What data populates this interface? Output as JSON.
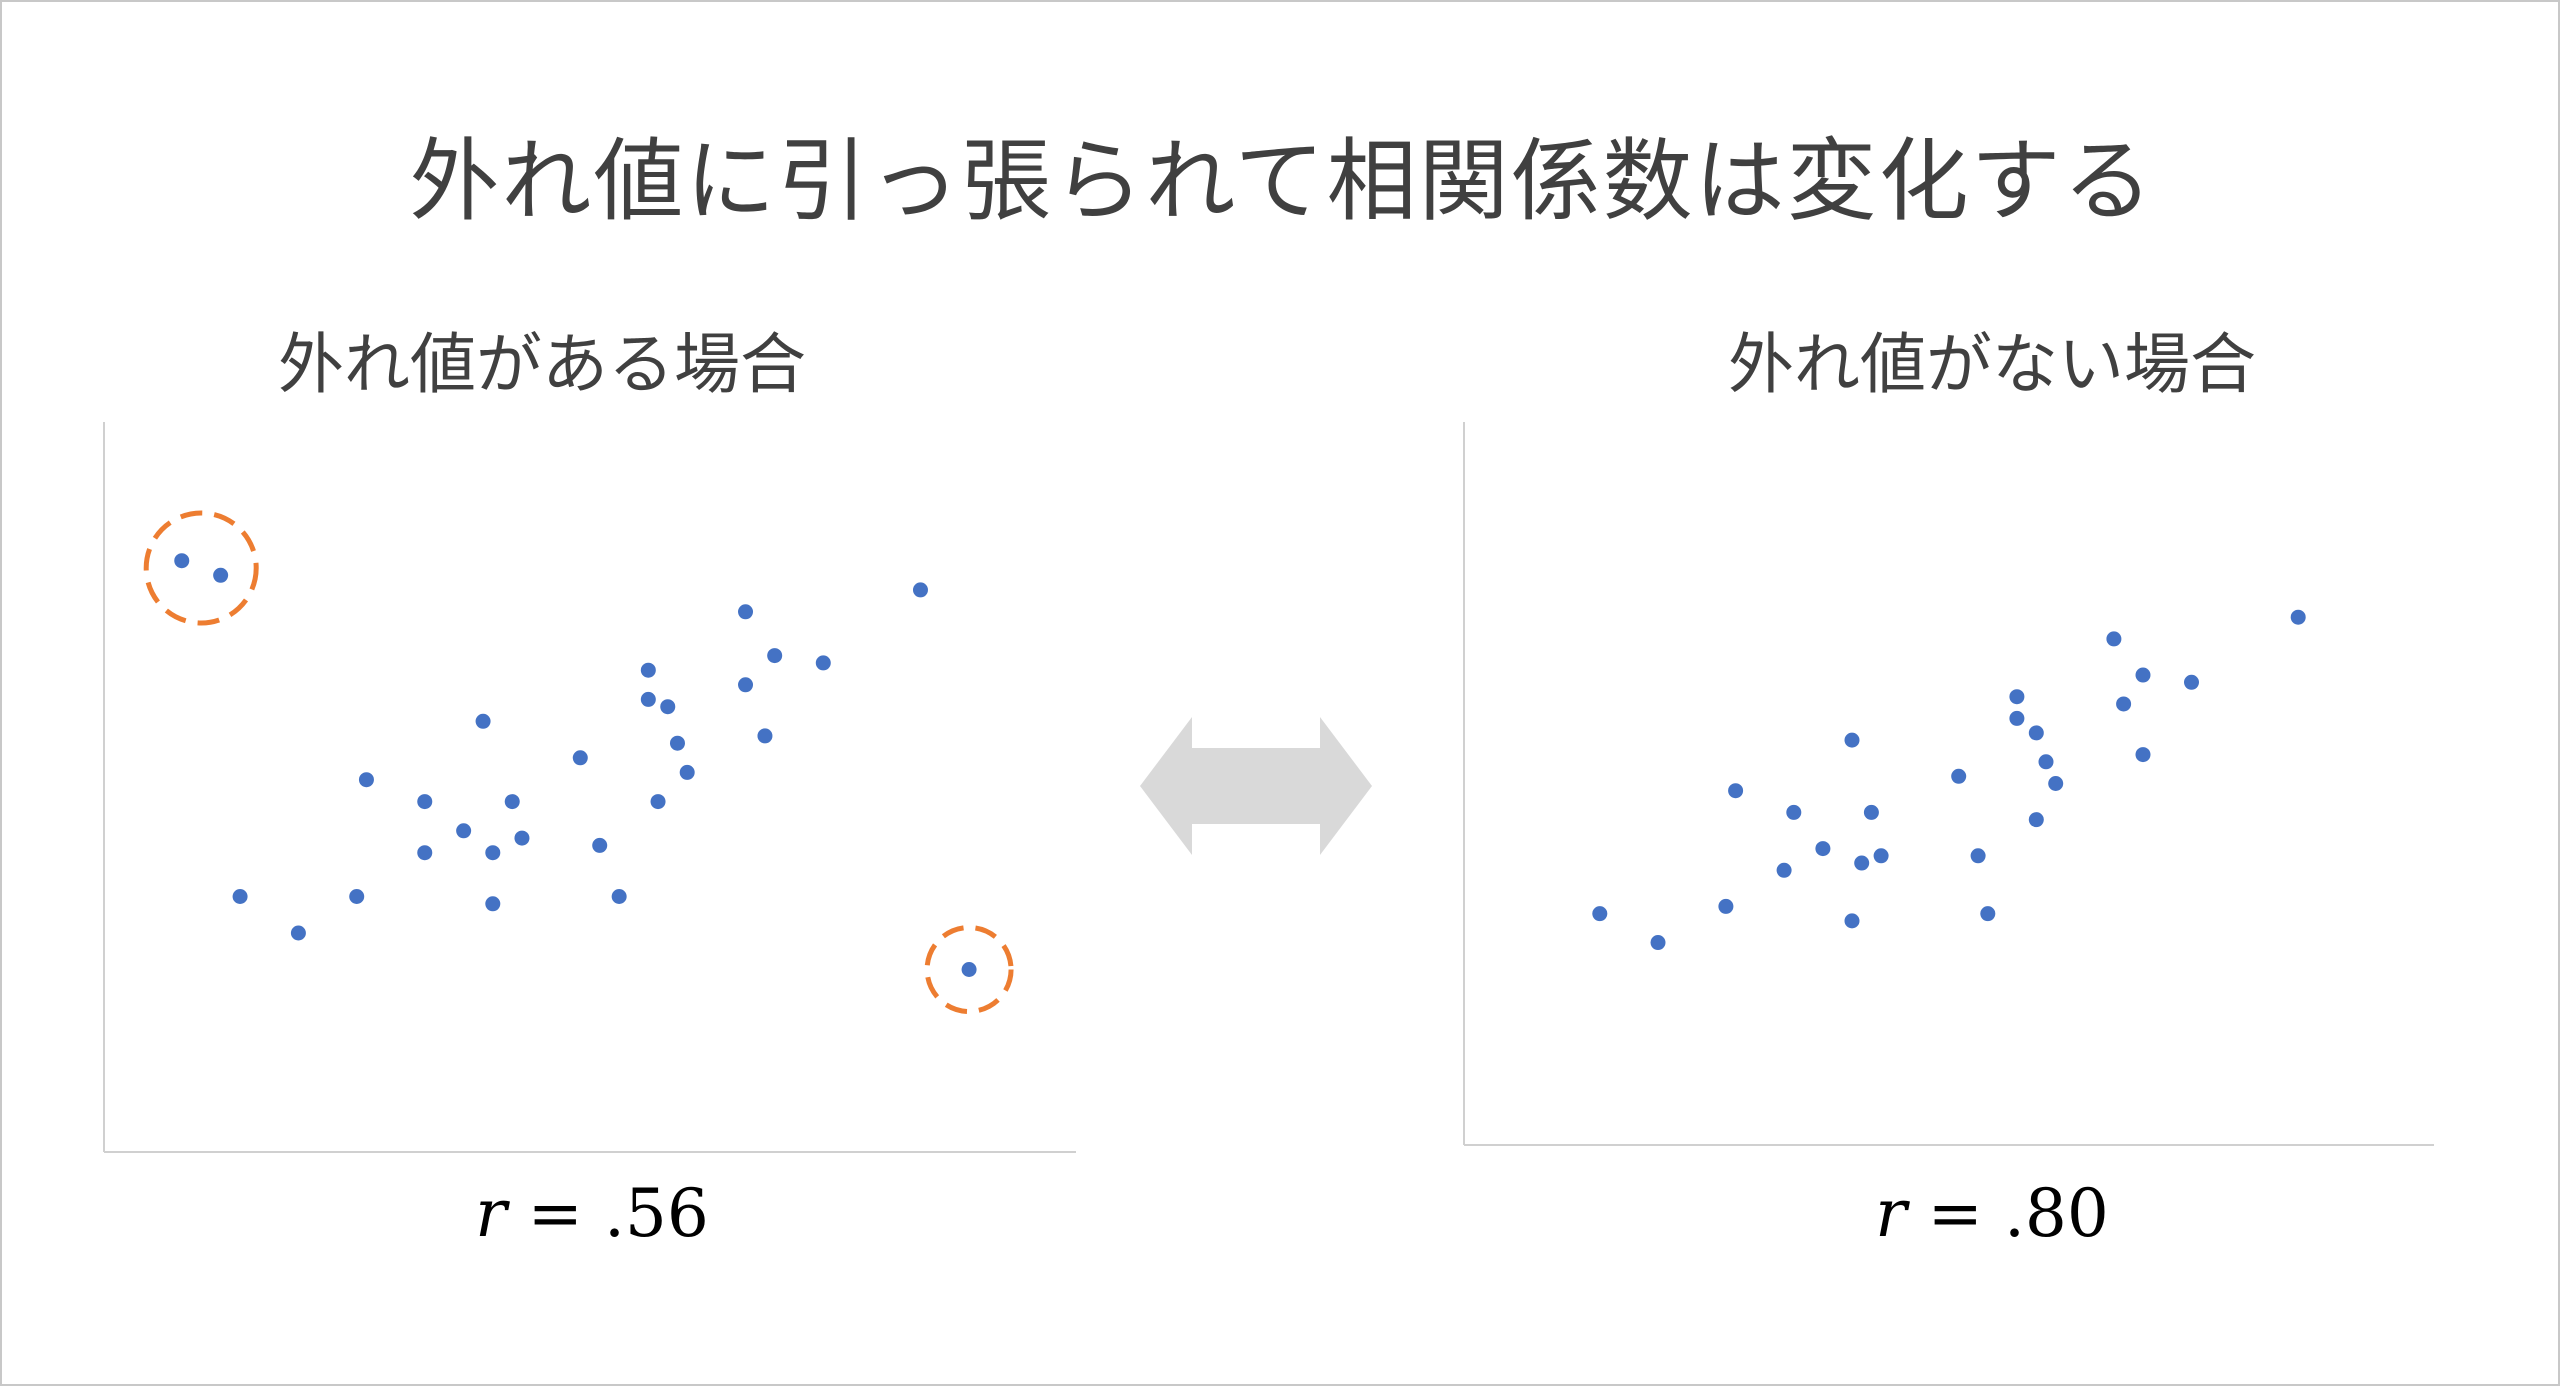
{
  "title": "外れ値に引っ張られて相関係数は変化する",
  "colors": {
    "point": "#4472c4",
    "outlier_circle": "#ed7d31",
    "axis": "#d0d0d0",
    "arrow": "#d9d9d9",
    "text": "#404040"
  },
  "chart_data": [
    {
      "type": "scatter",
      "title": "外れ値がある場合",
      "r_symbol": "r",
      "r_equals": "=",
      "r_value": ".56",
      "outliers_marked": [
        0,
        1,
        2
      ],
      "points": [
        {
          "x": 0.08,
          "y": 0.81
        },
        {
          "x": 0.12,
          "y": 0.79
        },
        {
          "x": 0.89,
          "y": 0.25
        },
        {
          "x": 0.14,
          "y": 0.35
        },
        {
          "x": 0.2,
          "y": 0.3
        },
        {
          "x": 0.26,
          "y": 0.35
        },
        {
          "x": 0.27,
          "y": 0.51
        },
        {
          "x": 0.33,
          "y": 0.48
        },
        {
          "x": 0.33,
          "y": 0.41
        },
        {
          "x": 0.37,
          "y": 0.44
        },
        {
          "x": 0.39,
          "y": 0.59
        },
        {
          "x": 0.4,
          "y": 0.34
        },
        {
          "x": 0.4,
          "y": 0.41
        },
        {
          "x": 0.42,
          "y": 0.48
        },
        {
          "x": 0.43,
          "y": 0.43
        },
        {
          "x": 0.49,
          "y": 0.54
        },
        {
          "x": 0.51,
          "y": 0.42
        },
        {
          "x": 0.53,
          "y": 0.35
        },
        {
          "x": 0.56,
          "y": 0.66
        },
        {
          "x": 0.56,
          "y": 0.62
        },
        {
          "x": 0.58,
          "y": 0.61
        },
        {
          "x": 0.57,
          "y": 0.48
        },
        {
          "x": 0.59,
          "y": 0.56
        },
        {
          "x": 0.6,
          "y": 0.52
        },
        {
          "x": 0.66,
          "y": 0.74
        },
        {
          "x": 0.66,
          "y": 0.64
        },
        {
          "x": 0.69,
          "y": 0.68
        },
        {
          "x": 0.68,
          "y": 0.57
        },
        {
          "x": 0.74,
          "y": 0.67
        },
        {
          "x": 0.84,
          "y": 0.77
        }
      ]
    },
    {
      "type": "scatter",
      "title": "外れ値がない場合",
      "r_symbol": "r",
      "r_equals": "=",
      "r_value": ".80",
      "points": [
        {
          "x": 0.14,
          "y": 0.32
        },
        {
          "x": 0.2,
          "y": 0.28
        },
        {
          "x": 0.27,
          "y": 0.33
        },
        {
          "x": 0.28,
          "y": 0.49
        },
        {
          "x": 0.33,
          "y": 0.38
        },
        {
          "x": 0.34,
          "y": 0.46
        },
        {
          "x": 0.37,
          "y": 0.41
        },
        {
          "x": 0.4,
          "y": 0.56
        },
        {
          "x": 0.4,
          "y": 0.31
        },
        {
          "x": 0.41,
          "y": 0.39
        },
        {
          "x": 0.42,
          "y": 0.46
        },
        {
          "x": 0.43,
          "y": 0.4
        },
        {
          "x": 0.51,
          "y": 0.51
        },
        {
          "x": 0.53,
          "y": 0.4
        },
        {
          "x": 0.54,
          "y": 0.32
        },
        {
          "x": 0.57,
          "y": 0.62
        },
        {
          "x": 0.57,
          "y": 0.59
        },
        {
          "x": 0.59,
          "y": 0.57
        },
        {
          "x": 0.6,
          "y": 0.53
        },
        {
          "x": 0.61,
          "y": 0.5
        },
        {
          "x": 0.59,
          "y": 0.45
        },
        {
          "x": 0.67,
          "y": 0.7
        },
        {
          "x": 0.68,
          "y": 0.61
        },
        {
          "x": 0.7,
          "y": 0.65
        },
        {
          "x": 0.7,
          "y": 0.54
        },
        {
          "x": 0.75,
          "y": 0.64
        },
        {
          "x": 0.86,
          "y": 0.73
        }
      ]
    }
  ]
}
